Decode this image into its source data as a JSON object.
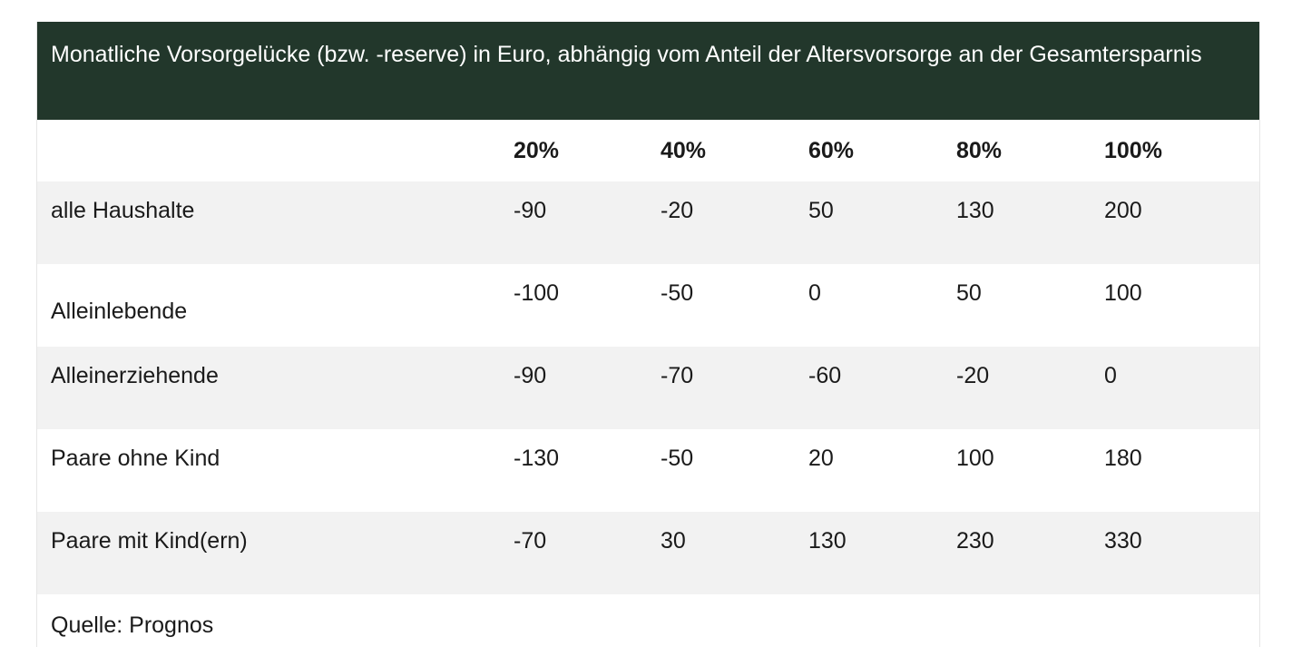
{
  "table": {
    "caption": "Monatliche Vorsorgelücke (bzw. -reserve) in Euro, abhängig vom Anteil der Altersvorsorge an der Gesamtersparnis",
    "columns": [
      "",
      "20%",
      "40%",
      "60%",
      "80%",
      "100%"
    ],
    "rows": [
      {
        "label": "alle Haushalte",
        "values": [
          "-90",
          "-20",
          "50",
          "130",
          "200"
        ]
      },
      {
        "label": "Alleinlebende",
        "values": [
          "-100",
          "-50",
          "0",
          "50",
          "100"
        ]
      },
      {
        "label": "Alleinerziehende",
        "values": [
          "-90",
          "-70",
          "-60",
          "-20",
          "0"
        ]
      },
      {
        "label": "Paare ohne Kind",
        "values": [
          "-130",
          "-50",
          "20",
          "100",
          "180"
        ]
      },
      {
        "label": "Paare mit Kind(ern)",
        "values": [
          "-70",
          "30",
          "130",
          "230",
          "330"
        ]
      }
    ],
    "source": "Quelle: Prognos"
  },
  "colors": {
    "caption_background": "#22372b",
    "caption_text": "#ffffff",
    "row_shade": "#f2f2f2"
  }
}
